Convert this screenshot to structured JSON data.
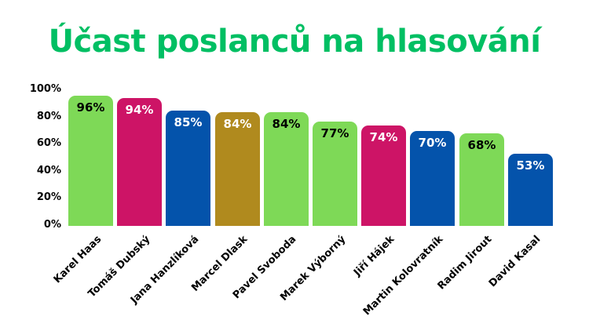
{
  "title": "Účast poslanců na hlasování",
  "title_color": "#00BF63",
  "chart_data": {
    "type": "bar",
    "title": "Účast poslanců na hlasování",
    "categories": [
      "Karel Haas",
      "Tomáš Dubský",
      "Jana Hanzlíková",
      "Marcel Dlask",
      "Pavel Svoboda",
      "Marek Výborný",
      "Jiří Hájek",
      "Martin Kolovratník",
      "Radim Jirout",
      "David Kasal"
    ],
    "values": [
      96,
      94,
      85,
      84,
      84,
      77,
      74,
      70,
      68,
      53
    ],
    "value_labels": [
      "96%",
      "94%",
      "85%",
      "84%",
      "84%",
      "77%",
      "74%",
      "70%",
      "68%",
      "53%"
    ],
    "bar_colors": [
      "#7ED957",
      "#CD1466",
      "#0453AB",
      "#B08A1E",
      "#7ED957",
      "#7ED957",
      "#CD1466",
      "#0453AB",
      "#7ED957",
      "#0453AB"
    ],
    "value_label_colors": [
      "#000000",
      "#FFFFFF",
      "#FFFFFF",
      "#FFFFFF",
      "#000000",
      "#000000",
      "#FFFFFF",
      "#FFFFFF",
      "#000000",
      "#FFFFFF"
    ],
    "y_ticks": [
      "100%",
      "80%",
      "60%",
      "40%",
      "20%",
      "0%"
    ],
    "ylim": [
      0,
      100
    ],
    "xlabel": "",
    "ylabel": "",
    "grid": false,
    "legend": null
  }
}
